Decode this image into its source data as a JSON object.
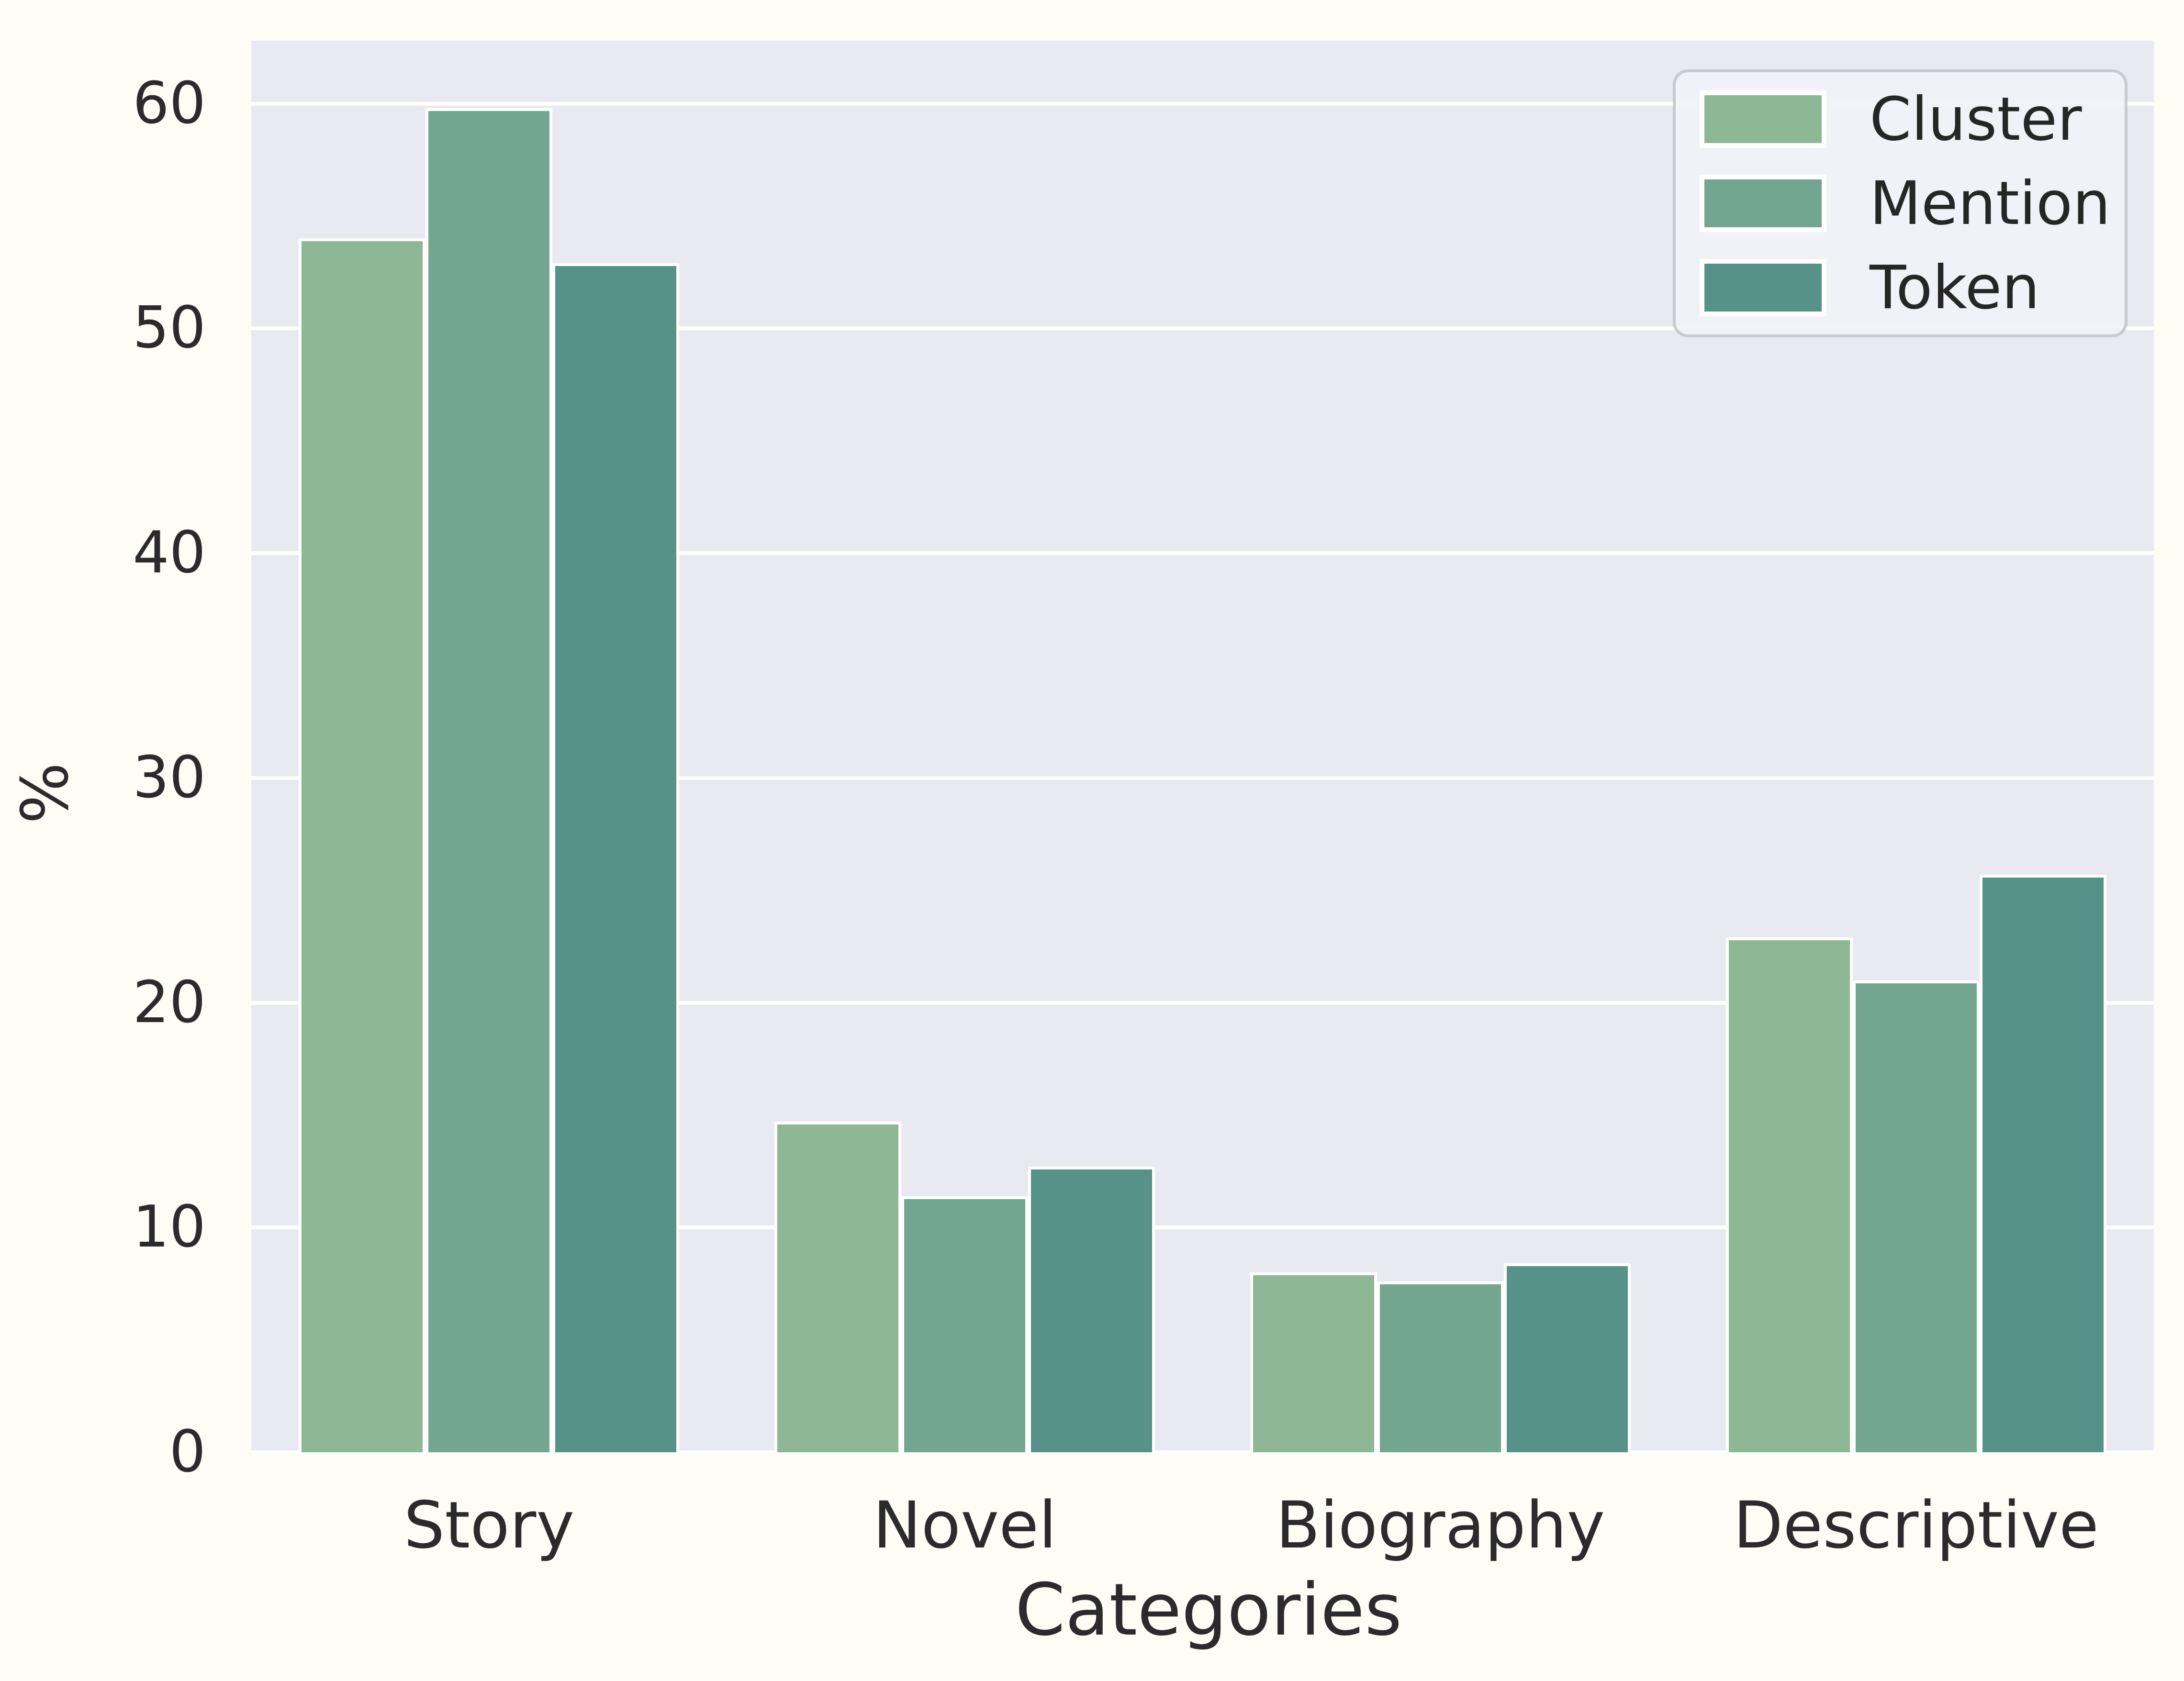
{
  "chart_data": {
    "type": "bar",
    "title": "",
    "categories": [
      "Story",
      "Novel",
      "Biography",
      "Descriptive"
    ],
    "series": [
      {
        "name": "Cluster",
        "color": "#8db795",
        "values": [
          54.0,
          14.7,
          8.0,
          22.9
        ]
      },
      {
        "name": "Mention",
        "color": "#72a690",
        "values": [
          59.8,
          11.4,
          7.6,
          21.0
        ]
      },
      {
        "name": "Token",
        "color": "#579288",
        "values": [
          52.9,
          12.7,
          8.4,
          25.7
        ]
      }
    ],
    "xlabel": "Categories",
    "ylabel": "%",
    "yticks": [
      0,
      10,
      20,
      30,
      40,
      50,
      60
    ],
    "ylim": [
      0,
      62.8
    ],
    "grid": true,
    "legend_position": "upper right",
    "colors": {
      "plot_background": "#e9e9f1",
      "figure_background": "#fdfdf5",
      "gridline": "#ffffff",
      "bar_edge": "#ffffff",
      "text": "#2b2b2b",
      "legend_border": "#c9c9cf"
    }
  }
}
